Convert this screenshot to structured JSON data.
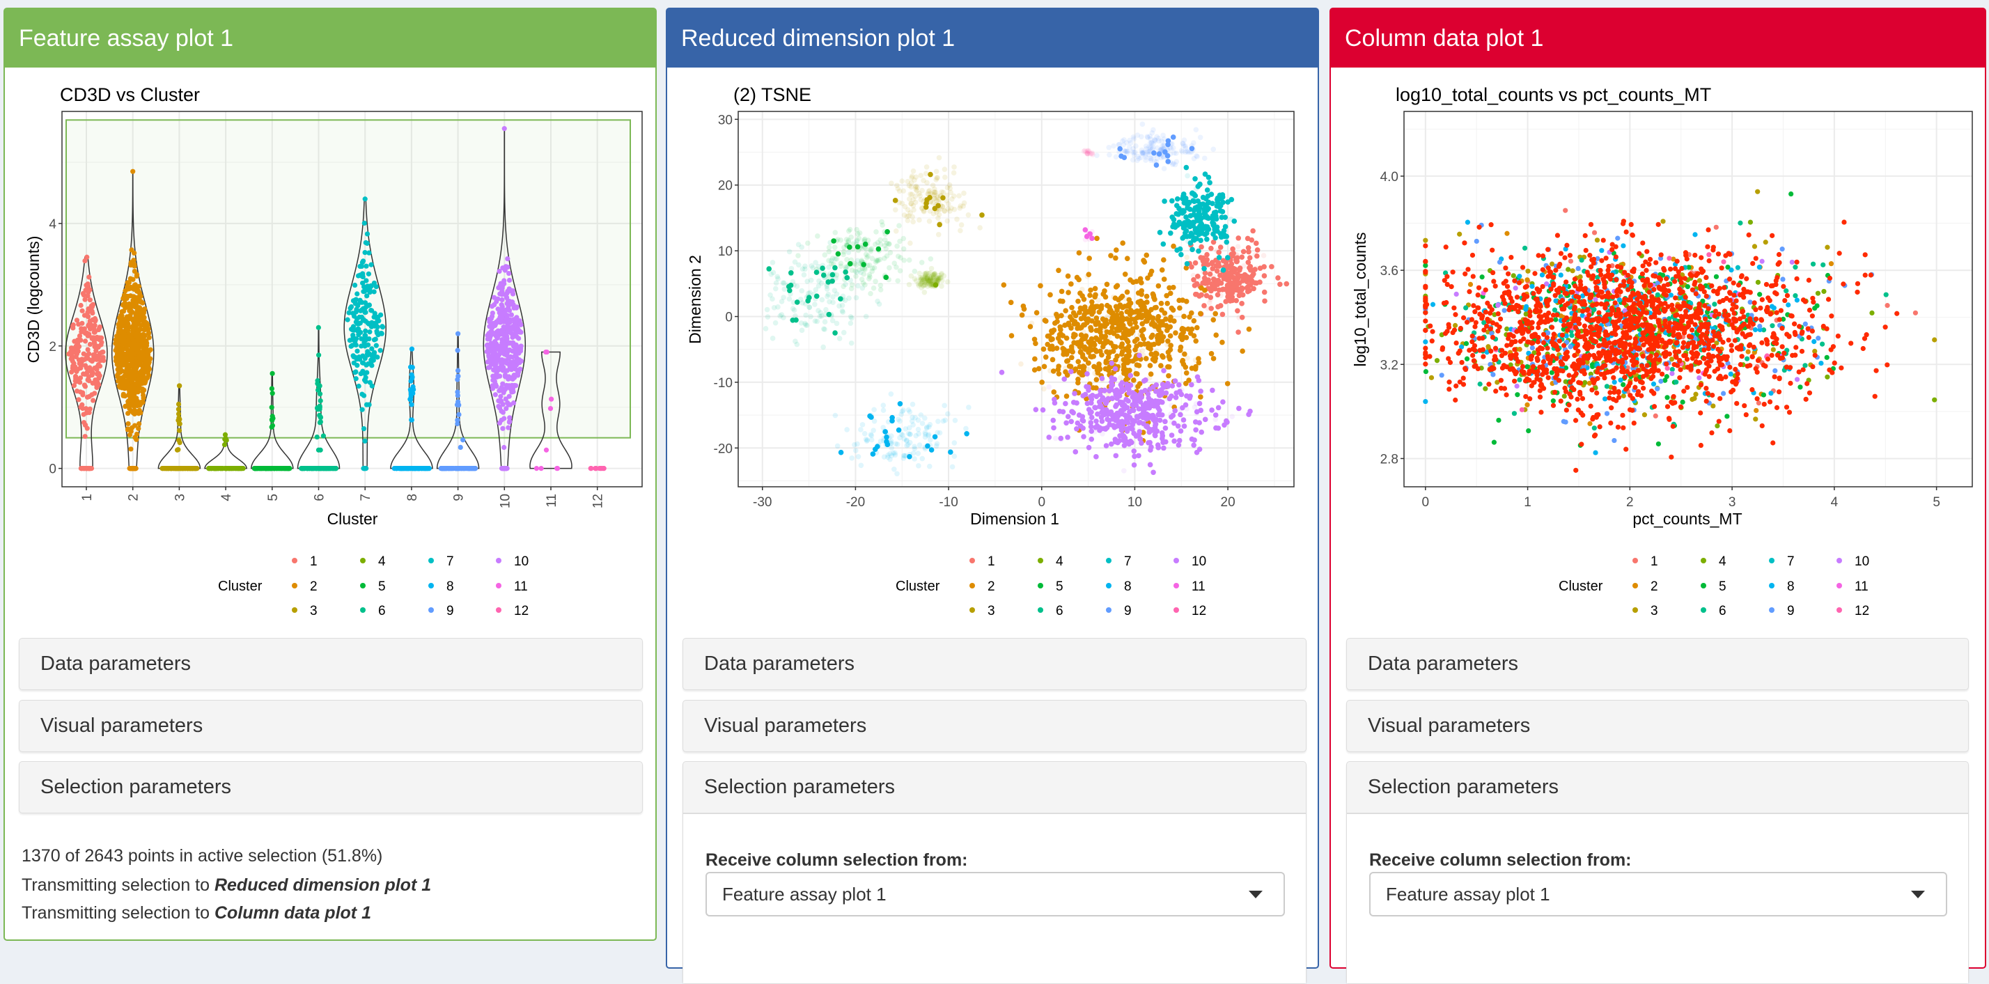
{
  "colors": {
    "page_bg": "#ecf0f5",
    "selection": "#ff2a00",
    "clusters": [
      "#F8766D",
      "#DE8C00",
      "#B79F00",
      "#7CAE00",
      "#00BA38",
      "#00C08B",
      "#00BFC4",
      "#00B4F0",
      "#619CFF",
      "#C77CFF",
      "#F564E3",
      "#FF64B0"
    ]
  },
  "panels": [
    {
      "title": "Feature assay plot 1",
      "color": "#7cb855",
      "sections": [
        "Data parameters",
        "Visual parameters",
        "Selection parameters"
      ],
      "status": {
        "line1": "1370 of 2643 points in active selection (51.8%)",
        "line2_prefix": "Transmitting selection to ",
        "line2_target": "Reduced dimension plot 1",
        "line3_prefix": "Transmitting selection to ",
        "line3_target": "Column data plot 1"
      }
    },
    {
      "title": "Reduced dimension plot 1",
      "color": "#3764a8",
      "sections": [
        "Data parameters",
        "Visual parameters",
        "Selection parameters"
      ],
      "selection": {
        "label": "Receive column selection from:",
        "value": "Feature assay plot 1"
      }
    },
    {
      "title": "Column data plot 1",
      "color": "#dc0030",
      "sections": [
        "Data parameters",
        "Visual parameters",
        "Selection parameters"
      ],
      "selection": {
        "label": "Receive column selection from:",
        "value": "Feature assay plot 1"
      }
    }
  ],
  "legend": {
    "title": "Cluster",
    "labels": [
      "1",
      "2",
      "3",
      "4",
      "5",
      "6",
      "7",
      "8",
      "9",
      "10",
      "11",
      "12"
    ]
  },
  "chart_data": [
    {
      "type": "violin",
      "title": "CD3D vs Cluster",
      "xlabel": "Cluster",
      "ylabel": "CD3D (logcounts)",
      "categories": [
        "1",
        "2",
        "3",
        "4",
        "5",
        "6",
        "7",
        "8",
        "9",
        "10",
        "11",
        "12"
      ],
      "yticks": [
        0,
        2,
        4
      ],
      "ylim": [
        -0.3,
        5.83
      ],
      "grid": true,
      "brush": {
        "ymin": 0.5,
        "ymax": 5.69
      },
      "approx_distribution": [
        {
          "cluster": "1",
          "n": 260,
          "zeros": 40,
          "center": 1.8,
          "sd": 0.55,
          "max": 3.45
        },
        {
          "cluster": "2",
          "n": 700,
          "zeros": 60,
          "center": 1.9,
          "sd": 0.55,
          "max": 4.85
        },
        {
          "cluster": "3",
          "n": 150,
          "zeros": 135,
          "center": 0.8,
          "sd": 0.3,
          "max": 1.35
        },
        {
          "cluster": "4",
          "n": 120,
          "zeros": 114,
          "center": 0.45,
          "sd": 0.05,
          "max": 0.55
        },
        {
          "cluster": "5",
          "n": 160,
          "zeros": 150,
          "center": 0.9,
          "sd": 0.4,
          "max": 1.55
        },
        {
          "cluster": "6",
          "n": 170,
          "zeros": 145,
          "center": 1.0,
          "sd": 0.4,
          "max": 2.3
        },
        {
          "cluster": "7",
          "n": 200,
          "zeros": 10,
          "center": 2.3,
          "sd": 0.6,
          "max": 4.4
        },
        {
          "cluster": "8",
          "n": 150,
          "zeros": 130,
          "center": 1.2,
          "sd": 0.35,
          "max": 1.95
        },
        {
          "cluster": "9",
          "n": 160,
          "zeros": 145,
          "center": 1.2,
          "sd": 0.45,
          "max": 2.2
        },
        {
          "cluster": "10",
          "n": 420,
          "zeros": 30,
          "center": 2.0,
          "sd": 0.55,
          "max": 5.55
        },
        {
          "cluster": "11",
          "n": 9,
          "zeros": 4,
          "center": 1.2,
          "sd": 0.5,
          "max": 1.9
        },
        {
          "cluster": "12",
          "n": 15,
          "zeros": 15,
          "center": 0,
          "sd": 0,
          "max": 0
        }
      ]
    },
    {
      "type": "scatter",
      "title": "(2) TSNE",
      "xlabel": "Dimension 1",
      "ylabel": "Dimension 2",
      "xticks": [
        -30,
        -20,
        -10,
        0,
        10,
        20
      ],
      "yticks": [
        -20,
        -10,
        0,
        10,
        20,
        30
      ],
      "xlim": [
        -32.6,
        27.1
      ],
      "ylim": [
        -25.9,
        31.2
      ],
      "grid": true,
      "cluster_centers": [
        {
          "cluster": "1",
          "center": [
            20,
            6
          ],
          "spread": [
            2.5,
            3
          ]
        },
        {
          "cluster": "2",
          "center": [
            8,
            -3
          ],
          "spread": [
            5.5,
            6
          ]
        },
        {
          "cluster": "3",
          "center": [
            -12,
            18
          ],
          "spread": [
            2.5,
            2.5
          ]
        },
        {
          "cluster": "4",
          "center": [
            -12,
            5.5
          ],
          "spread": [
            1,
            0.8
          ]
        },
        {
          "cluster": "5",
          "center": [
            -19,
            9
          ],
          "spread": [
            3,
            3
          ]
        },
        {
          "cluster": "6",
          "center": [
            -24,
            3
          ],
          "spread": [
            3.5,
            4
          ]
        },
        {
          "cluster": "7",
          "center": [
            17,
            15
          ],
          "spread": [
            2,
            3.5
          ]
        },
        {
          "cluster": "8",
          "center": [
            -15,
            -18
          ],
          "spread": [
            3.5,
            3
          ]
        },
        {
          "cluster": "9",
          "center": [
            12,
            25.5
          ],
          "spread": [
            3,
            1.5
          ]
        },
        {
          "cluster": "10",
          "center": [
            10,
            -15
          ],
          "spread": [
            5.5,
            3.5
          ]
        },
        {
          "cluster": "11",
          "center": [
            5,
            12.5
          ],
          "spread": [
            0.4,
            0.4
          ]
        },
        {
          "cluster": "12",
          "center": [
            5,
            25
          ],
          "spread": [
            0.3,
            0.3
          ]
        }
      ]
    },
    {
      "type": "scatter",
      "title": "log10_total_counts vs pct_counts_MT",
      "xlabel": "pct_counts_MT",
      "ylabel": "log10_total_counts",
      "xticks": [
        0,
        1,
        2,
        3,
        4,
        5
      ],
      "yticks": [
        2.8,
        3.2,
        3.6,
        4.0
      ],
      "ytick_labels": [
        "2.8",
        "3.2",
        "3.6",
        "4.0"
      ],
      "xlim": [
        -0.21,
        5.35
      ],
      "ylim": [
        2.68,
        4.275
      ],
      "grid": true,
      "approx_distribution": {
        "x_mean": 2.0,
        "x_sd": 0.9,
        "y_mean": 3.35,
        "y_sd": 0.17
      }
    }
  ]
}
